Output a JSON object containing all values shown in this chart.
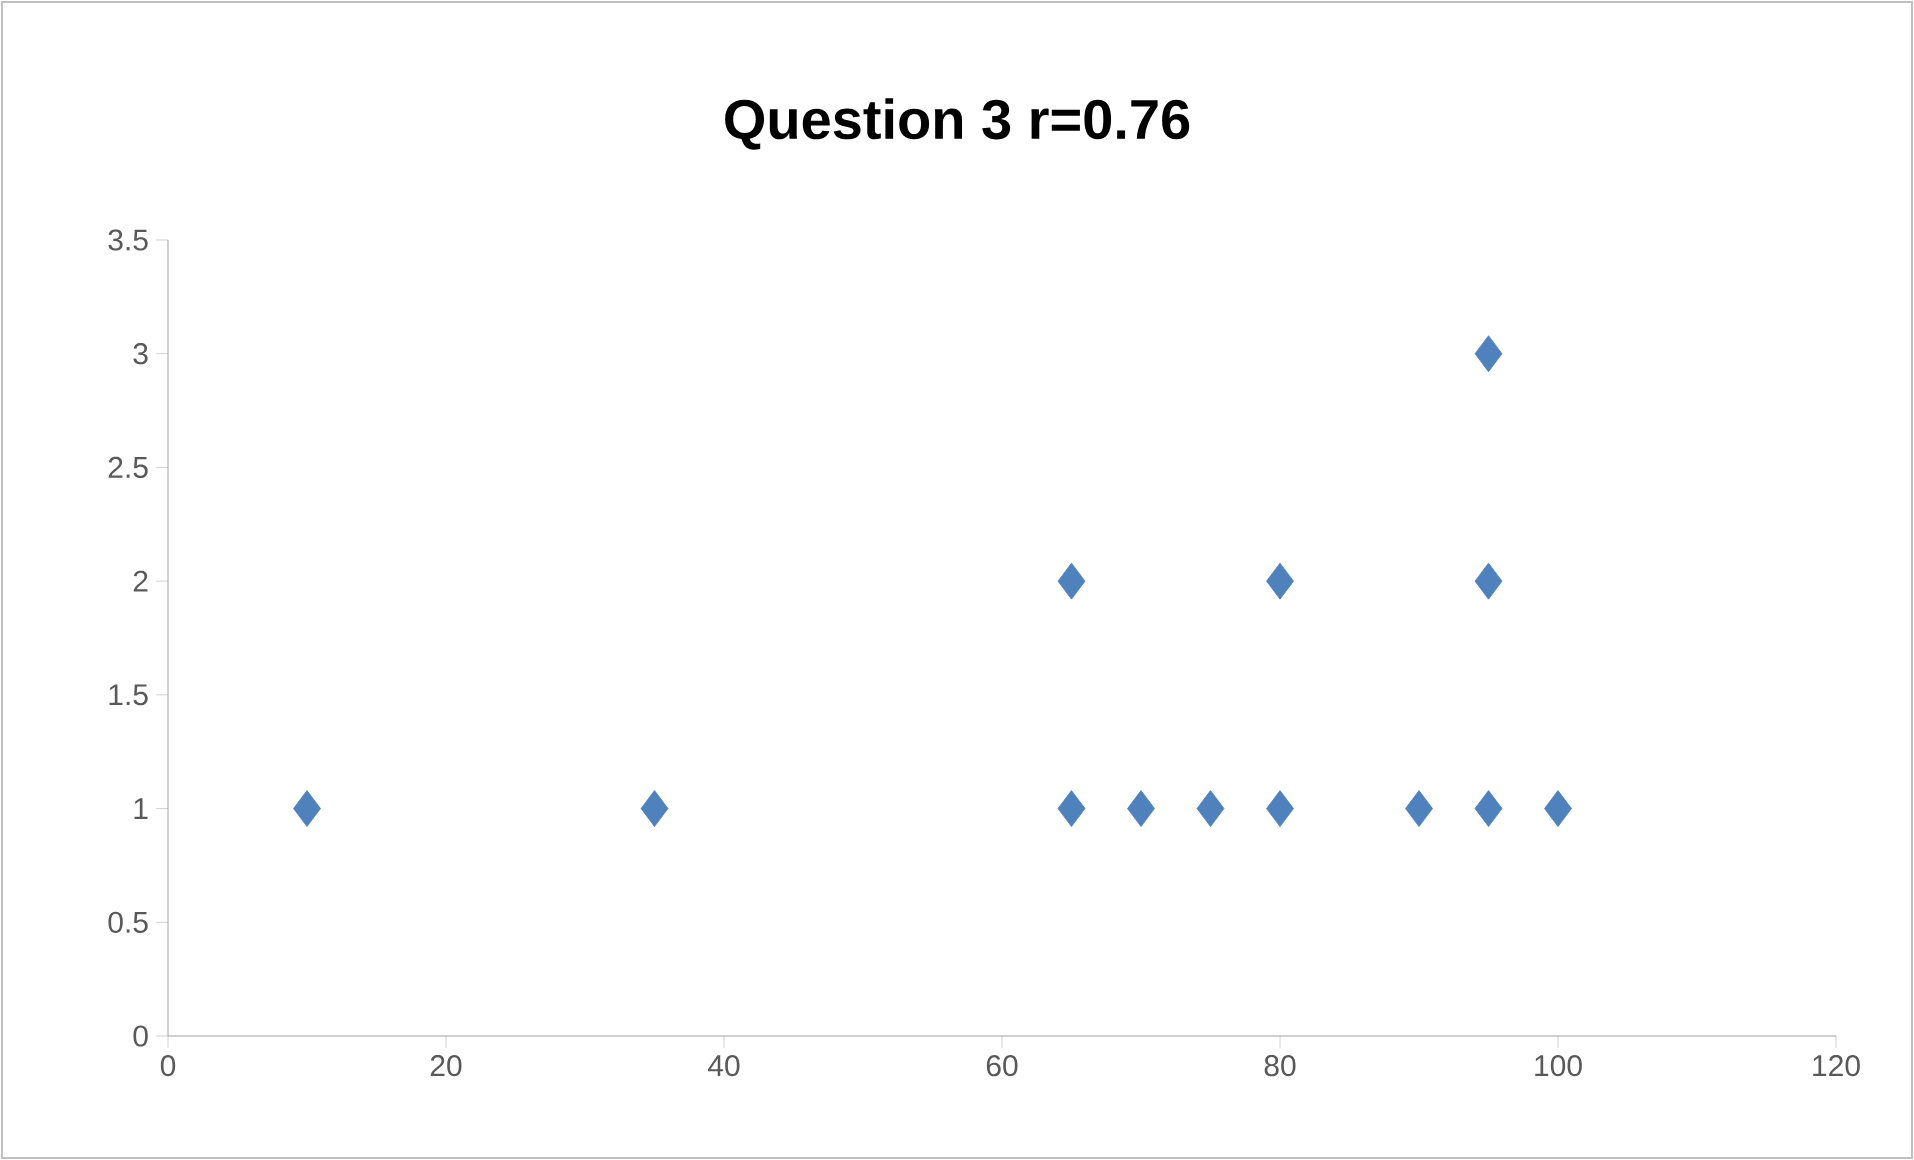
{
  "chart_data": {
    "type": "scatter",
    "title": "Question 3 r=0.76",
    "x": [
      10,
      35,
      65,
      65,
      70,
      75,
      80,
      80,
      90,
      95,
      95,
      95,
      100
    ],
    "values": [
      1,
      1,
      1,
      2,
      1,
      1,
      1,
      2,
      1,
      1,
      2,
      3,
      1
    ],
    "color": "#4f81bd",
    "marker": "diamond",
    "xlim": [
      0,
      120
    ],
    "xticks": [
      0,
      20,
      40,
      60,
      80,
      100,
      120
    ],
    "ylim": [
      0,
      3.5
    ],
    "yticks": [
      0,
      0.5,
      1,
      1.5,
      2,
      2.5,
      3,
      3.5
    ],
    "grid": false
  }
}
